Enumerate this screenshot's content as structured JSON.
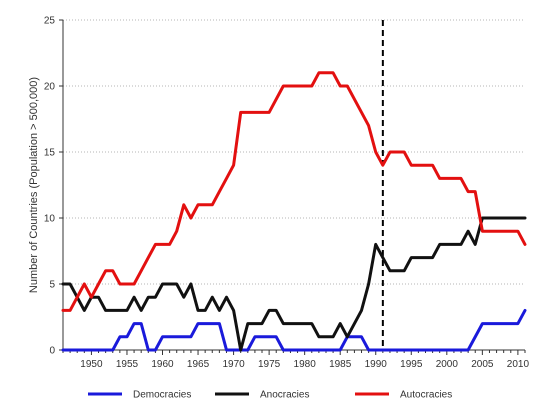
{
  "chart_data": {
    "type": "line",
    "title": "",
    "xlabel": "",
    "ylabel": "Number of Countries (Population > 500,000)",
    "xlim": [
      1946,
      2011
    ],
    "ylim": [
      0,
      25
    ],
    "x_ticks": [
      1950,
      1955,
      1960,
      1965,
      1970,
      1975,
      1980,
      1985,
      1990,
      1995,
      2000,
      2005,
      2010
    ],
    "x_tick_labels": [
      "1950",
      "1955",
      "1960",
      "1965",
      "1970",
      "1975",
      "1980",
      "1985",
      "1990",
      "1995",
      "2000",
      "2005",
      "2010"
    ],
    "y_ticks": [
      0,
      5,
      10,
      15,
      20,
      25
    ],
    "y_tick_labels": [
      "0",
      "5",
      "10",
      "15",
      "20",
      "25"
    ],
    "grid": "horizontal dotted",
    "reference_line": {
      "x": 1991,
      "style": "dashed"
    },
    "legend": "bottom",
    "series": [
      {
        "name": "Democracies",
        "color": "#1a1adb",
        "points": [
          [
            1946,
            0
          ],
          [
            1953,
            0
          ],
          [
            1954,
            1
          ],
          [
            1955,
            1
          ],
          [
            1956,
            2
          ],
          [
            1957,
            2
          ],
          [
            1958,
            0
          ],
          [
            1959,
            0
          ],
          [
            1960,
            1
          ],
          [
            1961,
            1
          ],
          [
            1963,
            1
          ],
          [
            1964,
            1
          ],
          [
            1965,
            2
          ],
          [
            1967,
            2
          ],
          [
            1968,
            2
          ],
          [
            1969,
            0
          ],
          [
            1972,
            0
          ],
          [
            1973,
            1
          ],
          [
            1976,
            1
          ],
          [
            1977,
            0
          ],
          [
            1985,
            0
          ],
          [
            1986,
            1
          ],
          [
            1988,
            1
          ],
          [
            1989,
            0
          ],
          [
            2003,
            0
          ],
          [
            2005,
            2
          ],
          [
            2008,
            2
          ],
          [
            2010,
            2
          ],
          [
            2011,
            3
          ]
        ]
      },
      {
        "name": "Anocracies",
        "color": "#111111",
        "points": [
          [
            1946,
            5
          ],
          [
            1947,
            5
          ],
          [
            1948,
            4
          ],
          [
            1949,
            3
          ],
          [
            1950,
            4
          ],
          [
            1951,
            4
          ],
          [
            1952,
            3
          ],
          [
            1955,
            3
          ],
          [
            1956,
            4
          ],
          [
            1957,
            3
          ],
          [
            1958,
            4
          ],
          [
            1959,
            4
          ],
          [
            1960,
            5
          ],
          [
            1962,
            5
          ],
          [
            1963,
            4
          ],
          [
            1964,
            5
          ],
          [
            1965,
            3
          ],
          [
            1966,
            3
          ],
          [
            1967,
            4
          ],
          [
            1968,
            3
          ],
          [
            1969,
            4
          ],
          [
            1970,
            3
          ],
          [
            1971,
            0
          ],
          [
            1972,
            2
          ],
          [
            1973,
            2
          ],
          [
            1974,
            2
          ],
          [
            1975,
            3
          ],
          [
            1976,
            3
          ],
          [
            1977,
            2
          ],
          [
            1981,
            2
          ],
          [
            1982,
            1
          ],
          [
            1984,
            1
          ],
          [
            1985,
            2
          ],
          [
            1986,
            1
          ],
          [
            1988,
            3
          ],
          [
            1989,
            5
          ],
          [
            1990,
            8
          ],
          [
            1991,
            7
          ],
          [
            1992,
            6
          ],
          [
            1994,
            6
          ],
          [
            1995,
            7
          ],
          [
            1998,
            7
          ],
          [
            1999,
            8
          ],
          [
            2002,
            8
          ],
          [
            2003,
            9
          ],
          [
            2004,
            8
          ],
          [
            2005,
            10
          ],
          [
            2011,
            10
          ]
        ]
      },
      {
        "name": "Autocracies",
        "color": "#e31010",
        "points": [
          [
            1946,
            3
          ],
          [
            1947,
            3
          ],
          [
            1948,
            4
          ],
          [
            1949,
            5
          ],
          [
            1950,
            4
          ],
          [
            1951,
            5
          ],
          [
            1952,
            6
          ],
          [
            1953,
            6
          ],
          [
            1954,
            5
          ],
          [
            1956,
            5
          ],
          [
            1957,
            6
          ],
          [
            1958,
            7
          ],
          [
            1959,
            8
          ],
          [
            1961,
            8
          ],
          [
            1962,
            9
          ],
          [
            1963,
            11
          ],
          [
            1964,
            10
          ],
          [
            1965,
            11
          ],
          [
            1967,
            11
          ],
          [
            1968,
            12
          ],
          [
            1969,
            13
          ],
          [
            1970,
            14
          ],
          [
            1971,
            18
          ],
          [
            1975,
            18
          ],
          [
            1977,
            20
          ],
          [
            1981,
            20
          ],
          [
            1982,
            21
          ],
          [
            1984,
            21
          ],
          [
            1985,
            20
          ],
          [
            1986,
            20
          ],
          [
            1987,
            19
          ],
          [
            1989,
            17
          ],
          [
            1990,
            15
          ],
          [
            1991,
            14
          ],
          [
            1992,
            15
          ],
          [
            1994,
            15
          ],
          [
            1995,
            14
          ],
          [
            1998,
            14
          ],
          [
            1999,
            13
          ],
          [
            2002,
            13
          ],
          [
            2003,
            12
          ],
          [
            2004,
            12
          ],
          [
            2005,
            9
          ],
          [
            2010,
            9
          ],
          [
            2011,
            8
          ]
        ]
      }
    ]
  }
}
